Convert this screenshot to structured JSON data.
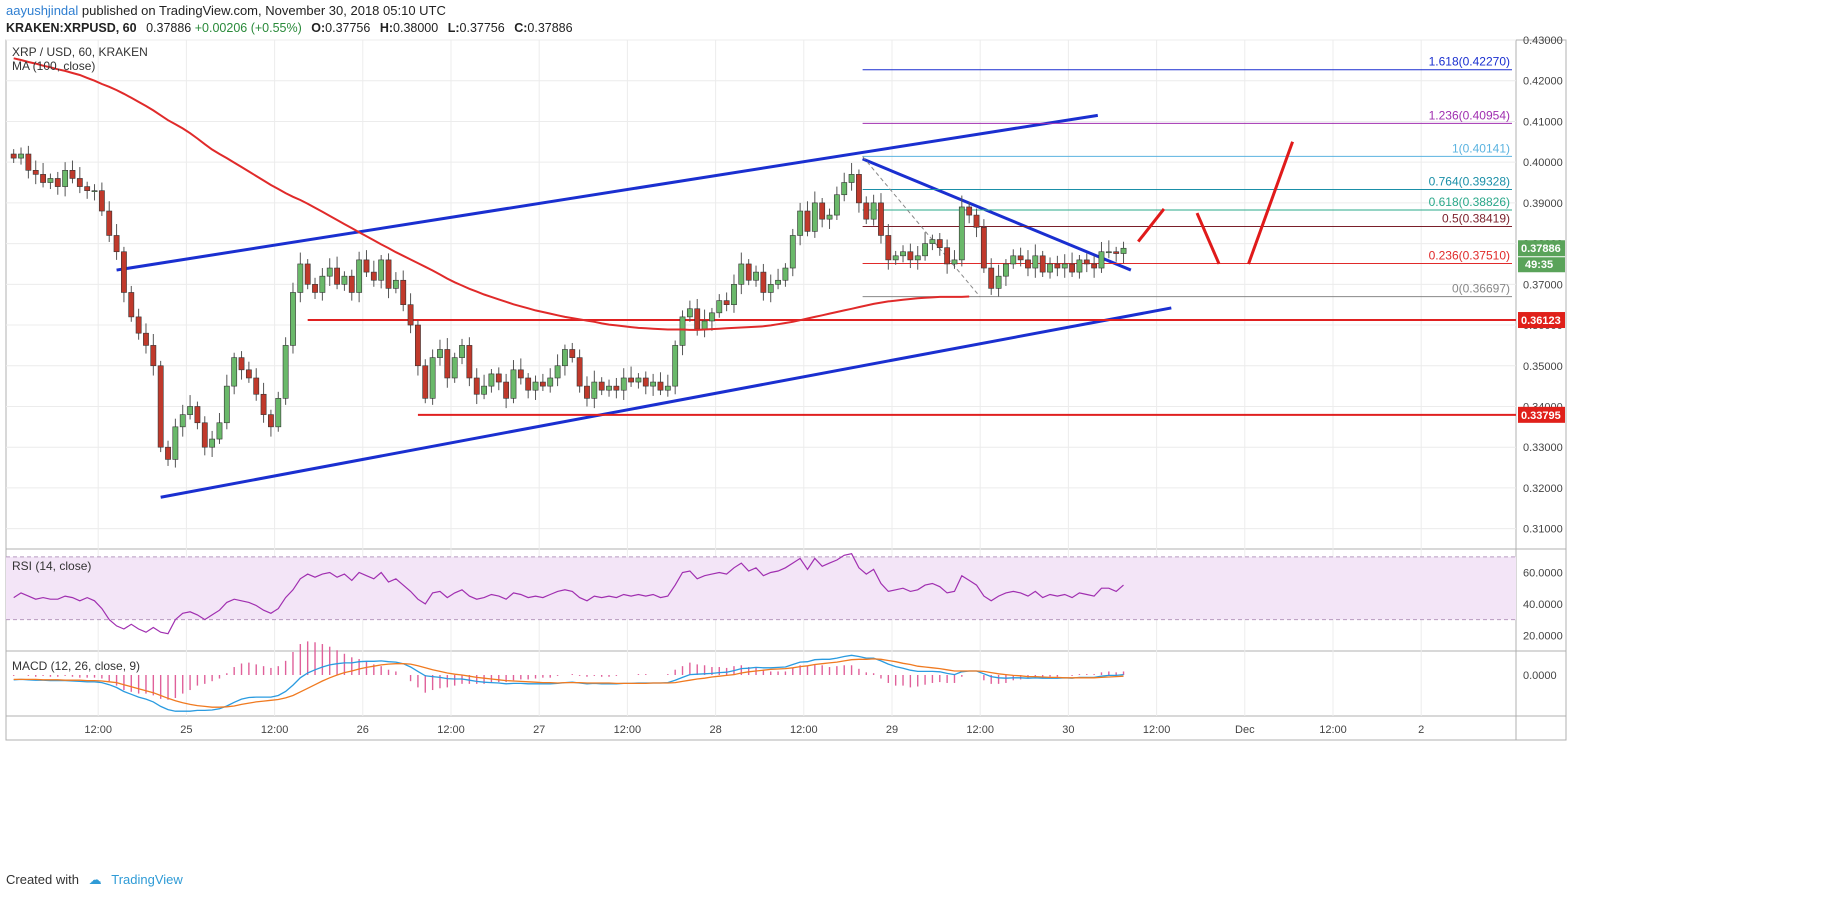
{
  "header": {
    "author": "aayushjindal",
    "published": "published on TradingView.com, November 30, 2018 05:10 UTC",
    "symbol": "KRAKEN:XRPUSD, 60",
    "last": "0.37886",
    "change": "+0.00206 (+0.55%)",
    "o_label": "O:",
    "o": "0.37756",
    "h_label": "H:",
    "h": "0.38000",
    "l_label": "L:",
    "l": "0.37756",
    "c_label": "C:",
    "c": "0.37886"
  },
  "footer": {
    "created_with": "Created with",
    "brand": "TradingView"
  },
  "colors": {
    "up": "#6ab96a",
    "down": "#c0392b",
    "ma": "#e02a2a",
    "trend": "#1a2fd0",
    "support": "#e02020",
    "rsi": "#a02fb0",
    "macd": "#2a9be0",
    "signal": "#f07a20"
  },
  "chart_data": [
    {
      "type": "candlestick",
      "title": "XRP / USD, 60, KRAKEN",
      "indicator": "MA (100, close)",
      "ylim": [
        0.305,
        0.43
      ],
      "y_ticks": [
        "0.43000",
        "0.42000",
        "0.41000",
        "0.40000",
        "0.39000",
        "0.38000",
        "0.37000",
        "0.36000",
        "0.35000",
        "0.34000",
        "0.33000",
        "0.32000",
        "0.31000"
      ],
      "x_ticks": [
        "12:00",
        "25",
        "12:00",
        "26",
        "12:00",
        "27",
        "12:00",
        "28",
        "12:00",
        "29",
        "12:00",
        "30",
        "12:00",
        "Dec",
        "12:00",
        "2"
      ],
      "x_tick_hours": [
        12,
        24,
        36,
        48,
        60,
        72,
        84,
        96,
        108,
        120,
        132,
        144,
        156,
        168,
        180,
        192
      ],
      "last_price": "0.37886",
      "countdown": "49:35",
      "support_levels": [
        {
          "label": "0.36123",
          "value": 0.36123
        },
        {
          "label": "0.33795",
          "value": 0.33795
        }
      ],
      "fib_levels": [
        {
          "label": "1.618(0.42270)",
          "value": 0.4227,
          "color": "#1a2fd0"
        },
        {
          "label": "1.236(0.40954)",
          "value": 0.40954,
          "color": "#a02fb0"
        },
        {
          "label": "1(0.40141)",
          "value": 0.40141,
          "color": "#5bb3e0"
        },
        {
          "label": "0.764(0.39328)",
          "value": 0.39328,
          "color": "#1a8fa8"
        },
        {
          "label": "0.618(0.38826)",
          "value": 0.38826,
          "color": "#2aa88a"
        },
        {
          "label": "0.5(0.38419)",
          "value": 0.38419,
          "color": "#7a1f2a"
        },
        {
          "label": "0.236(0.37510)",
          "value": 0.3751,
          "color": "#e02a2a"
        },
        {
          "label": "0(0.36697)",
          "value": 0.36697,
          "color": "#888888"
        }
      ],
      "closes": [
        0.401,
        0.402,
        0.398,
        0.397,
        0.395,
        0.396,
        0.394,
        0.398,
        0.396,
        0.394,
        0.393,
        0.393,
        0.388,
        0.382,
        0.378,
        0.368,
        0.362,
        0.358,
        0.355,
        0.35,
        0.33,
        0.327,
        0.335,
        0.338,
        0.34,
        0.336,
        0.33,
        0.332,
        0.336,
        0.345,
        0.352,
        0.349,
        0.347,
        0.343,
        0.338,
        0.335,
        0.342,
        0.355,
        0.368,
        0.375,
        0.37,
        0.368,
        0.372,
        0.374,
        0.37,
        0.372,
        0.368,
        0.376,
        0.373,
        0.371,
        0.376,
        0.369,
        0.371,
        0.365,
        0.36,
        0.35,
        0.342,
        0.352,
        0.354,
        0.347,
        0.352,
        0.355,
        0.347,
        0.343,
        0.345,
        0.348,
        0.346,
        0.342,
        0.349,
        0.347,
        0.344,
        0.346,
        0.345,
        0.347,
        0.35,
        0.354,
        0.352,
        0.345,
        0.342,
        0.346,
        0.344,
        0.345,
        0.344,
        0.347,
        0.346,
        0.347,
        0.345,
        0.346,
        0.344,
        0.345,
        0.355,
        0.362,
        0.364,
        0.359,
        0.361,
        0.363,
        0.366,
        0.365,
        0.37,
        0.375,
        0.371,
        0.373,
        0.368,
        0.37,
        0.371,
        0.374,
        0.382,
        0.388,
        0.383,
        0.39,
        0.386,
        0.387,
        0.392,
        0.395,
        0.397,
        0.39,
        0.386,
        0.39,
        0.382,
        0.376,
        0.377,
        0.378,
        0.376,
        0.377,
        0.38,
        0.381,
        0.379,
        0.375,
        0.376,
        0.389,
        0.387,
        0.384,
        0.374,
        0.369,
        0.372,
        0.375,
        0.377,
        0.376,
        0.374,
        0.377,
        0.373,
        0.375,
        0.374,
        0.375,
        0.373,
        0.376,
        0.375,
        0.374,
        0.378,
        0.378,
        0.37756,
        0.37886
      ],
      "ma100": [
        0.4255,
        0.4251,
        0.4246,
        0.4242,
        0.4237,
        0.4233,
        0.4228,
        0.4224,
        0.4219,
        0.4214,
        0.4207,
        0.42,
        0.4192,
        0.4185,
        0.4177,
        0.4168,
        0.4158,
        0.4148,
        0.4138,
        0.4127,
        0.4115,
        0.4103,
        0.4093,
        0.4083,
        0.4071,
        0.4058,
        0.4044,
        0.4031,
        0.402,
        0.401,
        0.3999,
        0.3988,
        0.3977,
        0.3966,
        0.3955,
        0.3944,
        0.3934,
        0.3924,
        0.3915,
        0.3907,
        0.3898,
        0.3888,
        0.3878,
        0.3868,
        0.3858,
        0.3848,
        0.3838,
        0.3828,
        0.3818,
        0.3808,
        0.3798,
        0.3789,
        0.3779,
        0.377,
        0.3761,
        0.3752,
        0.3743,
        0.3734,
        0.3724,
        0.3714,
        0.3705,
        0.3697,
        0.3689,
        0.3682,
        0.3675,
        0.3669,
        0.3663,
        0.3657,
        0.3651,
        0.3646,
        0.3641,
        0.3636,
        0.3632,
        0.3628,
        0.3624,
        0.362,
        0.3617,
        0.3614,
        0.3611,
        0.3608,
        0.3604,
        0.3601,
        0.3599,
        0.3597,
        0.3595,
        0.3593,
        0.3592,
        0.3591,
        0.359,
        0.3589,
        0.3589,
        0.3589,
        0.3588,
        0.3588,
        0.3589,
        0.359,
        0.3591,
        0.3592,
        0.3593,
        0.3594,
        0.3595,
        0.3596,
        0.3597,
        0.3599,
        0.3602,
        0.3605,
        0.3608,
        0.3612,
        0.3616,
        0.362,
        0.3624,
        0.3628,
        0.3632,
        0.3636,
        0.364,
        0.3644,
        0.3648,
        0.3652,
        0.3655,
        0.3658,
        0.366,
        0.3662,
        0.3664,
        0.3666,
        0.3667,
        0.3668,
        0.3669,
        0.3669,
        0.3669,
        0.3669,
        0.367
      ]
    },
    {
      "type": "line",
      "title": "RSI (14, close)",
      "ylim": [
        10,
        75
      ],
      "y_ticks": [
        "60.0000",
        "40.0000",
        "20.0000"
      ],
      "bands": [
        30,
        70
      ],
      "values": [
        44,
        47,
        45,
        43,
        44,
        43,
        43,
        45,
        44,
        42,
        44,
        42,
        37,
        30,
        26,
        24,
        27,
        24,
        22,
        25,
        22,
        21,
        30,
        34,
        35,
        33,
        30,
        33,
        36,
        41,
        43,
        42,
        41,
        39,
        36,
        34,
        37,
        44,
        49,
        56,
        59,
        57,
        59,
        60,
        57,
        59,
        55,
        60,
        58,
        56,
        60,
        54,
        56,
        52,
        48,
        43,
        40,
        47,
        48,
        44,
        47,
        49,
        45,
        43,
        44,
        46,
        45,
        43,
        47,
        46,
        44,
        45,
        44,
        46,
        48,
        49,
        48,
        44,
        42,
        45,
        44,
        45,
        44,
        46,
        45,
        46,
        45,
        46,
        44,
        45,
        52,
        60,
        61,
        56,
        58,
        59,
        60,
        59,
        63,
        66,
        61,
        63,
        58,
        60,
        61,
        63,
        66,
        69,
        62,
        69,
        64,
        66,
        68,
        71,
        72,
        63,
        59,
        62,
        53,
        48,
        49,
        50,
        48,
        49,
        52,
        53,
        51,
        47,
        48,
        58,
        55,
        52,
        45,
        42,
        45,
        47,
        48,
        47,
        45,
        48,
        44,
        46,
        45,
        46,
        44,
        47,
        46,
        45,
        50,
        50,
        48,
        52
      ]
    },
    {
      "type": "line",
      "title": "MACD (12, 26, close, 9)",
      "y_ticks": [
        "0.0000"
      ],
      "macd": [
        -0.0012,
        -0.0011,
        -0.0012,
        -0.0013,
        -0.0013,
        -0.0014,
        -0.0014,
        -0.0014,
        -0.0015,
        -0.0016,
        -0.0017,
        -0.0017,
        -0.0019,
        -0.0024,
        -0.0031,
        -0.0041,
        -0.0048,
        -0.0055,
        -0.006,
        -0.0067,
        -0.0078,
        -0.0086,
        -0.009,
        -0.009,
        -0.009,
        -0.0088,
        -0.0088,
        -0.0087,
        -0.0084,
        -0.0077,
        -0.0068,
        -0.006,
        -0.0056,
        -0.0055,
        -0.0055,
        -0.0055,
        -0.0051,
        -0.0041,
        -0.0025,
        -0.0007,
        0.0005,
        0.0013,
        0.002,
        0.0025,
        0.0028,
        0.003,
        0.003,
        0.0033,
        0.0034,
        0.0034,
        0.0035,
        0.0033,
        0.0032,
        0.0028,
        0.002,
        0.0009,
        -0.0002,
        -0.0004,
        -0.0006,
        -0.0009,
        -0.001,
        -0.001,
        -0.0013,
        -0.0016,
        -0.0018,
        -0.0019,
        -0.002,
        -0.0022,
        -0.0021,
        -0.0021,
        -0.0022,
        -0.0022,
        -0.0022,
        -0.0022,
        -0.0021,
        -0.0019,
        -0.0018,
        -0.002,
        -0.0022,
        -0.0021,
        -0.0022,
        -0.0022,
        -0.0022,
        -0.0021,
        -0.0021,
        -0.002,
        -0.002,
        -0.002,
        -0.002,
        -0.0019,
        -0.0013,
        -0.0006,
        0.0001,
        0.0002,
        0.0003,
        0.0004,
        0.0006,
        0.0007,
        0.0011,
        0.0016,
        0.0017,
        0.0019,
        0.0018,
        0.0018,
        0.0019,
        0.002,
        0.0026,
        0.0032,
        0.0033,
        0.0038,
        0.0039,
        0.0039,
        0.0042,
        0.0046,
        0.0049,
        0.0046,
        0.0042,
        0.0042,
        0.0035,
        0.0027,
        0.0021,
        0.0017,
        0.0012,
        0.0009,
        0.0009,
        0.0009,
        0.0008,
        0.0004,
        0.0001,
        0.0008,
        0.001,
        0.001,
        0.0003,
        -0.0004,
        -0.0007,
        -0.0008,
        -0.0007,
        -0.0007,
        -0.0008,
        -0.0007,
        -0.0008,
        -0.0008,
        -0.0008,
        -0.0007,
        -0.0008,
        -0.0006,
        -0.0006,
        -0.0006,
        -0.0003,
        -0.0001,
        -0.0001,
        0.0001
      ],
      "signal": [
        -0.0011,
        -0.0011,
        -0.0011,
        -0.0011,
        -0.0012,
        -0.0012,
        -0.0012,
        -0.0013,
        -0.0013,
        -0.0013,
        -0.0014,
        -0.0014,
        -0.0015,
        -0.0017,
        -0.0019,
        -0.0024,
        -0.0029,
        -0.0034,
        -0.0039,
        -0.0044,
        -0.0051,
        -0.0058,
        -0.0064,
        -0.0069,
        -0.0073,
        -0.0076,
        -0.0078,
        -0.008,
        -0.008,
        -0.0079,
        -0.0077,
        -0.0073,
        -0.007,
        -0.0067,
        -0.0065,
        -0.0063,
        -0.0061,
        -0.0057,
        -0.0051,
        -0.0042,
        -0.0033,
        -0.0024,
        -0.0015,
        -0.0007,
        -0.0,
        0.0006,
        0.001,
        0.0015,
        0.0019,
        0.0022,
        0.0025,
        0.0027,
        0.0028,
        0.0028,
        0.0027,
        0.0023,
        0.0018,
        0.0013,
        0.0009,
        0.0005,
        0.0002,
        -0.0,
        -0.0003,
        -0.0006,
        -0.0008,
        -0.001,
        -0.0012,
        -0.0014,
        -0.0015,
        -0.0016,
        -0.0017,
        -0.0018,
        -0.0019,
        -0.0019,
        -0.002,
        -0.0019,
        -0.0019,
        -0.0019,
        -0.002,
        -0.002,
        -0.002,
        -0.002,
        -0.0021,
        -0.0021,
        -0.0021,
        -0.0021,
        -0.0021,
        -0.002,
        -0.002,
        -0.002,
        -0.0019,
        -0.0016,
        -0.0013,
        -0.001,
        -0.0008,
        -0.0005,
        -0.0003,
        -0.0001,
        0.0001,
        0.0005,
        0.0008,
        0.001,
        0.0012,
        0.0014,
        0.0015,
        0.0016,
        0.0018,
        0.0021,
        0.0023,
        0.0026,
        0.0028,
        0.003,
        0.0032,
        0.0035,
        0.0038,
        0.0039,
        0.0039,
        0.004,
        0.0039,
        0.0036,
        0.0033,
        0.0029,
        0.0026,
        0.0022,
        0.002,
        0.0018,
        0.0016,
        0.0013,
        0.001,
        0.001,
        0.001,
        0.001,
        0.0009,
        0.0006,
        0.0003,
        0.0001,
        -0.0001,
        -0.0002,
        -0.0004,
        -0.0004,
        -0.0005,
        -0.0006,
        -0.0006,
        -0.0007,
        -0.0007,
        -0.0007,
        -0.0007,
        -0.0007,
        -0.0006,
        -0.0005,
        -0.0004,
        -0.0003
      ]
    }
  ]
}
